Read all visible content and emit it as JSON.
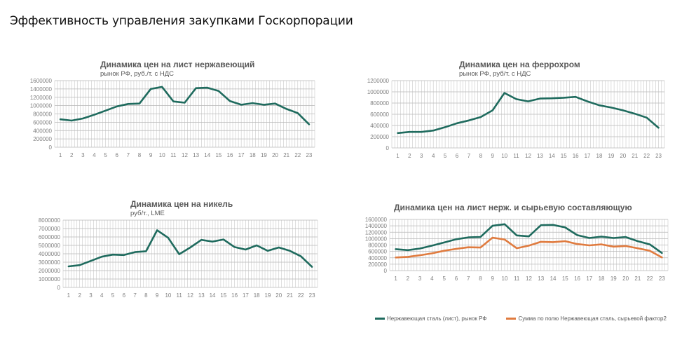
{
  "page": {
    "title": "Эффективность управления закупками Госкорпорации"
  },
  "colors": {
    "teal": "#1f6b5e",
    "orange": "#e07b3f",
    "grid": "#c8c8c8",
    "text": "#595959"
  },
  "chart_data": [
    {
      "type": "line",
      "title": "Динамика цен на лист нержавеющий",
      "subtitle": "рынок РФ, руб./т. с НДС",
      "xlabel": "",
      "ylabel": "",
      "x": [
        1,
        2,
        3,
        4,
        5,
        6,
        7,
        8,
        9,
        10,
        11,
        12,
        13,
        14,
        15,
        16,
        17,
        18,
        19,
        20,
        21,
        22,
        23
      ],
      "yticks": [
        "0",
        "200000",
        "400000",
        "600000",
        "800000",
        "1000000",
        "1200000",
        "1400000",
        "1600000"
      ],
      "ylim": [
        0,
        1600000
      ],
      "grid": true,
      "series": [
        {
          "name": "Нержавеющая сталь (лист), рынок РФ",
          "color": "#1f6b5e",
          "values": [
            670000,
            640000,
            690000,
            780000,
            880000,
            980000,
            1040000,
            1050000,
            1400000,
            1450000,
            1100000,
            1070000,
            1420000,
            1430000,
            1350000,
            1110000,
            1020000,
            1060000,
            1020000,
            1050000,
            920000,
            820000,
            550000
          ]
        }
      ]
    },
    {
      "type": "line",
      "title": "Динамика цен на феррохром",
      "subtitle": "рынок РФ, руб/т. с НДС",
      "xlabel": "",
      "ylabel": "",
      "x": [
        1,
        2,
        3,
        4,
        5,
        6,
        7,
        8,
        9,
        10,
        11,
        12,
        13,
        14,
        15,
        16,
        17,
        18,
        19,
        20,
        21,
        22,
        23
      ],
      "yticks": [
        "0",
        "200000",
        "400000",
        "600000",
        "800000",
        "1000000",
        "1200000"
      ],
      "ylim": [
        0,
        1200000
      ],
      "grid": true,
      "series": [
        {
          "name": "Феррохром",
          "color": "#1f6b5e",
          "values": [
            265000,
            285000,
            285000,
            310000,
            370000,
            440000,
            490000,
            550000,
            670000,
            980000,
            870000,
            830000,
            880000,
            885000,
            895000,
            910000,
            830000,
            760000,
            720000,
            670000,
            610000,
            540000,
            360000
          ]
        }
      ]
    },
    {
      "type": "line",
      "title": "Динамика цен на никель",
      "subtitle": "руб/т., LME",
      "xlabel": "",
      "ylabel": "",
      "x": [
        1,
        2,
        3,
        4,
        5,
        6,
        7,
        8,
        9,
        10,
        11,
        12,
        13,
        14,
        15,
        16,
        17,
        18,
        19,
        20,
        21,
        22,
        23
      ],
      "yticks": [
        "0",
        "1000000",
        "2000000",
        "3000000",
        "4000000",
        "5000000",
        "6000000",
        "7000000",
        "8000000"
      ],
      "ylim": [
        0,
        8000000
      ],
      "grid": true,
      "series": [
        {
          "name": "Никель",
          "color": "#1f6b5e",
          "values": [
            2500000,
            2650000,
            3150000,
            3650000,
            3900000,
            3850000,
            4200000,
            4300000,
            6800000,
            5900000,
            3950000,
            4750000,
            5650000,
            5450000,
            5700000,
            4800000,
            4500000,
            5000000,
            4350000,
            4750000,
            4350000,
            3700000,
            2450000
          ]
        }
      ]
    },
    {
      "type": "line",
      "title": "Динамика цен на лист нерж. и сырьевую составляющую",
      "subtitle": "",
      "xlabel": "",
      "ylabel": "",
      "x": [
        1,
        2,
        3,
        4,
        5,
        6,
        7,
        8,
        9,
        10,
        11,
        12,
        13,
        14,
        15,
        16,
        17,
        18,
        19,
        20,
        21,
        22,
        23
      ],
      "yticks": [
        "0",
        "200000",
        "400000",
        "600000",
        "800000",
        "1000000",
        "1200000",
        "1400000",
        "1600000"
      ],
      "ylim": [
        0,
        1600000
      ],
      "grid": true,
      "legend": "bottom",
      "series": [
        {
          "name": "Нержавеющая сталь (лист), рынок РФ",
          "color": "#1f6b5e",
          "values": [
            670000,
            640000,
            690000,
            780000,
            880000,
            980000,
            1040000,
            1050000,
            1400000,
            1450000,
            1100000,
            1070000,
            1420000,
            1430000,
            1350000,
            1110000,
            1020000,
            1060000,
            1020000,
            1050000,
            920000,
            820000,
            550000
          ]
        },
        {
          "name": "Сумма по полю Нержавеющая сталь, сырьевой фактор2",
          "color": "#e07b3f",
          "values": [
            410000,
            430000,
            480000,
            540000,
            620000,
            680000,
            730000,
            720000,
            1030000,
            970000,
            700000,
            780000,
            900000,
            890000,
            920000,
            830000,
            790000,
            820000,
            750000,
            770000,
            700000,
            620000,
            410000
          ]
        }
      ]
    }
  ]
}
